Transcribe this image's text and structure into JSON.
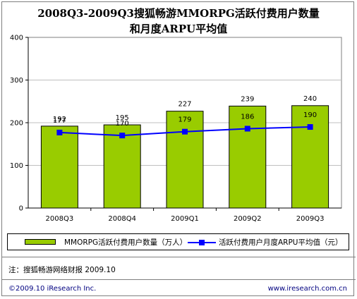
{
  "title_line1": "2008Q3-2009Q3搜狐畅游MMORPG活跃付费用户数量",
  "title_line2": "和月度ARPU平均值",
  "chart_data": {
    "type": "bar",
    "categories": [
      "2008Q3",
      "2008Q4",
      "2009Q1",
      "2009Q2",
      "2009Q3"
    ],
    "ylim": [
      0,
      400
    ],
    "yticks": [
      0,
      100,
      200,
      300,
      400
    ],
    "series": [
      {
        "name": "MMORPG活跃付费用户数量（万人）",
        "type": "bar",
        "values": [
          192,
          195,
          227,
          239,
          240
        ],
        "labels": [
          "192",
          "195",
          "227",
          "239",
          "240"
        ],
        "color": "#99cc00"
      },
      {
        "name": "活跃付费用户月度ARPU平均值（元）",
        "type": "line",
        "values": [
          177,
          170,
          179,
          186,
          190
        ],
        "labels": [
          "177",
          "170",
          "179",
          "186",
          "190"
        ],
        "color": "#0000ff"
      }
    ],
    "legend": "bottom"
  },
  "note": "注：搜狐畅游网络财报 2009.10",
  "copyright": "©2009.10 iResearch Inc.",
  "website": "www.iresearch.com.cn"
}
